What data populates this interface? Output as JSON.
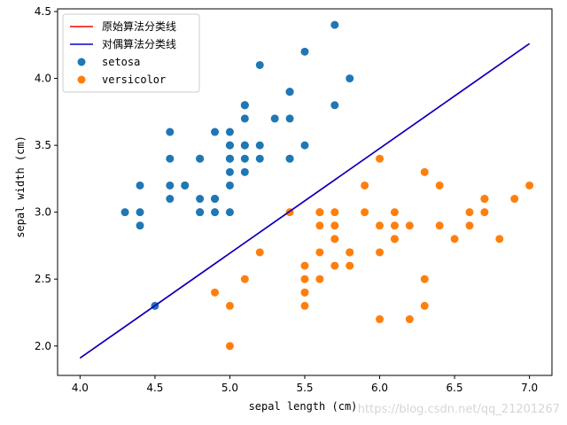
{
  "chart_data": {
    "type": "scatter",
    "xlabel": "sepal length (cm)",
    "ylabel": "sepal width (cm)",
    "xlim": [
      3.85,
      7.15
    ],
    "ylim": [
      1.78,
      4.52
    ],
    "x_ticks": [
      "4.0",
      "4.5",
      "5.0",
      "5.5",
      "6.0",
      "6.5",
      "7.0"
    ],
    "y_ticks": [
      "2.0",
      "2.5",
      "3.0",
      "3.5",
      "4.0",
      "4.5"
    ],
    "legend_position": "top-left",
    "lines": [
      {
        "name": "原始算法分类线",
        "color": "#ff0000",
        "x": [
          4.0,
          7.0
        ],
        "y": [
          1.91,
          4.26
        ]
      },
      {
        "name": "对偶算法分类线",
        "color": "#0000cc",
        "x": [
          4.0,
          7.0
        ],
        "y": [
          1.91,
          4.26
        ]
      }
    ],
    "series": [
      {
        "name": "setosa",
        "color": "#1f77b4",
        "points": [
          [
            5.1,
            3.5
          ],
          [
            4.9,
            3.0
          ],
          [
            4.7,
            3.2
          ],
          [
            4.6,
            3.1
          ],
          [
            5.0,
            3.6
          ],
          [
            5.4,
            3.9
          ],
          [
            4.6,
            3.4
          ],
          [
            5.0,
            3.4
          ],
          [
            4.4,
            2.9
          ],
          [
            4.9,
            3.1
          ],
          [
            5.4,
            3.7
          ],
          [
            4.8,
            3.4
          ],
          [
            4.8,
            3.0
          ],
          [
            4.3,
            3.0
          ],
          [
            5.8,
            4.0
          ],
          [
            5.7,
            4.4
          ],
          [
            5.4,
            3.9
          ],
          [
            5.1,
            3.5
          ],
          [
            5.7,
            3.8
          ],
          [
            5.1,
            3.8
          ],
          [
            5.4,
            3.4
          ],
          [
            5.1,
            3.7
          ],
          [
            4.6,
            3.6
          ],
          [
            5.1,
            3.3
          ],
          [
            4.8,
            3.4
          ],
          [
            5.0,
            3.0
          ],
          [
            5.0,
            3.4
          ],
          [
            5.2,
            3.5
          ],
          [
            5.2,
            3.4
          ],
          [
            4.7,
            3.2
          ],
          [
            4.8,
            3.1
          ],
          [
            5.4,
            3.4
          ],
          [
            5.2,
            4.1
          ],
          [
            5.5,
            4.2
          ],
          [
            4.9,
            3.1
          ],
          [
            5.0,
            3.2
          ],
          [
            5.5,
            3.5
          ],
          [
            4.9,
            3.6
          ],
          [
            4.4,
            3.0
          ],
          [
            5.1,
            3.4
          ],
          [
            5.0,
            3.5
          ],
          [
            4.5,
            2.3
          ],
          [
            4.4,
            3.2
          ],
          [
            5.0,
            3.5
          ],
          [
            5.1,
            3.8
          ],
          [
            4.8,
            3.0
          ],
          [
            5.1,
            3.8
          ],
          [
            4.6,
            3.2
          ],
          [
            5.3,
            3.7
          ],
          [
            5.0,
            3.3
          ]
        ]
      },
      {
        "name": "versicolor",
        "color": "#ff7f0e",
        "points": [
          [
            7.0,
            3.2
          ],
          [
            6.4,
            3.2
          ],
          [
            6.9,
            3.1
          ],
          [
            5.5,
            2.3
          ],
          [
            6.5,
            2.8
          ],
          [
            5.7,
            2.8
          ],
          [
            6.3,
            3.3
          ],
          [
            4.9,
            2.4
          ],
          [
            6.6,
            2.9
          ],
          [
            5.2,
            2.7
          ],
          [
            5.0,
            2.0
          ],
          [
            5.9,
            3.0
          ],
          [
            6.0,
            2.2
          ],
          [
            6.1,
            2.9
          ],
          [
            5.6,
            2.9
          ],
          [
            6.7,
            3.1
          ],
          [
            5.6,
            3.0
          ],
          [
            5.8,
            2.7
          ],
          [
            6.2,
            2.2
          ],
          [
            5.6,
            2.5
          ],
          [
            5.9,
            3.2
          ],
          [
            6.1,
            2.8
          ],
          [
            6.3,
            2.5
          ],
          [
            6.1,
            2.8
          ],
          [
            6.4,
            2.9
          ],
          [
            6.6,
            3.0
          ],
          [
            6.8,
            2.8
          ],
          [
            6.7,
            3.0
          ],
          [
            6.0,
            2.9
          ],
          [
            5.7,
            2.6
          ],
          [
            5.5,
            2.4
          ],
          [
            5.5,
            2.4
          ],
          [
            5.8,
            2.7
          ],
          [
            6.0,
            2.7
          ],
          [
            5.4,
            3.0
          ],
          [
            6.0,
            3.4
          ],
          [
            6.7,
            3.1
          ],
          [
            6.3,
            2.3
          ],
          [
            5.6,
            3.0
          ],
          [
            5.5,
            2.5
          ],
          [
            5.5,
            2.6
          ],
          [
            6.1,
            3.0
          ],
          [
            5.8,
            2.6
          ],
          [
            5.0,
            2.3
          ],
          [
            5.6,
            2.7
          ],
          [
            5.7,
            3.0
          ],
          [
            5.7,
            2.9
          ],
          [
            6.2,
            2.9
          ],
          [
            5.1,
            2.5
          ],
          [
            5.7,
            2.8
          ]
        ]
      }
    ]
  },
  "watermark": "https://blog.csdn.net/qq_21201267"
}
